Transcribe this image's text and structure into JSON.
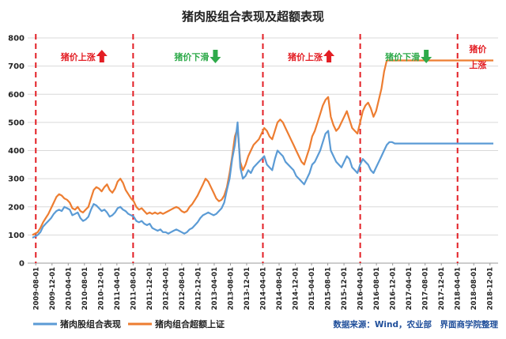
{
  "chart_data": {
    "type": "line",
    "title": "猪肉股组合表现及超额表现",
    "ylim": [
      0,
      800
    ],
    "yticks": [
      0,
      100,
      200,
      300,
      400,
      500,
      600,
      700,
      800
    ],
    "grid": "horizontal",
    "legend_position": "bottom-left",
    "x_ticks": [
      "2009-08-01",
      "2009-12-01",
      "2010-04-01",
      "2010-08-01",
      "2010-12-01",
      "2011-04-01",
      "2011-08-01",
      "2011-12-01",
      "2012-04-01",
      "2012-08-01",
      "2012-12-01",
      "2013-04-01",
      "2013-08-01",
      "2013-12-01",
      "2014-04-01",
      "2014-08-01",
      "2014-12-01",
      "2015-04-01",
      "2015-08-01",
      "2015-12-01",
      "2016-04-01",
      "2016-08-01",
      "2016-12-01",
      "2017-04-01",
      "2017-08-01",
      "2017-12-01",
      "2018-04-01",
      "2018-08-01",
      "2018-12-01"
    ],
    "series": [
      {
        "name": "猪肉股组合表现",
        "color": "#5b9bd5",
        "x": [
          0,
          1,
          2,
          3,
          4,
          5,
          6,
          7,
          8,
          9,
          10,
          11,
          12,
          13,
          14,
          15,
          16,
          17,
          18,
          19,
          20,
          21,
          22,
          23,
          24,
          25,
          26,
          27,
          28,
          29,
          30,
          31,
          32,
          33,
          34,
          35,
          36,
          37,
          38,
          39,
          40,
          41,
          42,
          43,
          44,
          45,
          46,
          47,
          48,
          49,
          50,
          51,
          52,
          53,
          54,
          55,
          56,
          57,
          58,
          59,
          60,
          61,
          62,
          63,
          64,
          65,
          66,
          67,
          68,
          69,
          70,
          71,
          72,
          73,
          74,
          75,
          76,
          77,
          78,
          79,
          80,
          81,
          82,
          83,
          84,
          85,
          86,
          87,
          88,
          89,
          90,
          91,
          92,
          93,
          94,
          95,
          96,
          97,
          98,
          99,
          100,
          101,
          102,
          103,
          104,
          105,
          106,
          107,
          108,
          109,
          110,
          111,
          112,
          113,
          114,
          115,
          116,
          117,
          118,
          119,
          120,
          121,
          122,
          123,
          124,
          125,
          126,
          127,
          128,
          129,
          130,
          131,
          132,
          133,
          134,
          135,
          136,
          137,
          138,
          139,
          140,
          141,
          142,
          143,
          144,
          145,
          146,
          147,
          148,
          149,
          150,
          151,
          152,
          153,
          154,
          155,
          156,
          157,
          158,
          159,
          160,
          161,
          162,
          163,
          164,
          165,
          166,
          167,
          168,
          169,
          170,
          171,
          172,
          173
        ],
        "values": [
          90,
          95,
          100,
          110,
          130,
          140,
          150,
          160,
          175,
          185,
          190,
          185,
          200,
          195,
          190,
          170,
          175,
          180,
          160,
          150,
          155,
          165,
          190,
          210,
          205,
          195,
          185,
          190,
          180,
          165,
          170,
          180,
          195,
          200,
          190,
          185,
          175,
          170,
          165,
          150,
          145,
          150,
          140,
          135,
          140,
          125,
          120,
          115,
          120,
          110,
          110,
          105,
          110,
          115,
          120,
          115,
          110,
          105,
          110,
          120,
          125,
          135,
          145,
          160,
          170,
          175,
          180,
          175,
          170,
          175,
          185,
          195,
          215,
          260,
          300,
          370,
          420,
          500,
          340,
          300,
          310,
          330,
          320,
          340,
          350,
          360,
          370,
          380,
          350,
          340,
          330,
          370,
          400,
          390,
          380,
          360,
          350,
          340,
          330,
          310,
          300,
          290,
          280,
          300,
          320,
          350,
          360,
          380,
          400,
          430,
          460,
          470,
          400,
          380,
          360,
          350,
          340,
          360,
          380,
          370,
          340,
          330,
          320,
          350,
          370,
          360,
          350,
          330,
          320,
          340,
          360,
          380,
          400,
          420,
          430,
          430,
          425,
          425,
          425,
          425,
          425,
          425,
          425,
          425,
          425,
          425,
          425,
          425,
          425,
          425,
          425,
          425,
          425,
          425,
          425,
          425,
          425,
          425,
          425,
          425,
          425,
          425,
          425,
          425,
          425,
          425,
          425,
          425,
          425,
          425,
          425,
          425,
          425,
          425
        ]
      },
      {
        "name": "猪肉组合超额上证",
        "color": "#ed7d31",
        "x": [
          0,
          1,
          2,
          3,
          4,
          5,
          6,
          7,
          8,
          9,
          10,
          11,
          12,
          13,
          14,
          15,
          16,
          17,
          18,
          19,
          20,
          21,
          22,
          23,
          24,
          25,
          26,
          27,
          28,
          29,
          30,
          31,
          32,
          33,
          34,
          35,
          36,
          37,
          38,
          39,
          40,
          41,
          42,
          43,
          44,
          45,
          46,
          47,
          48,
          49,
          50,
          51,
          52,
          53,
          54,
          55,
          56,
          57,
          58,
          59,
          60,
          61,
          62,
          63,
          64,
          65,
          66,
          67,
          68,
          69,
          70,
          71,
          72,
          73,
          74,
          75,
          76,
          77,
          78,
          79,
          80,
          81,
          82,
          83,
          84,
          85,
          86,
          87,
          88,
          89,
          90,
          91,
          92,
          93,
          94,
          95,
          96,
          97,
          98,
          99,
          100,
          101,
          102,
          103,
          104,
          105,
          106,
          107,
          108,
          109,
          110,
          111,
          112,
          113,
          114,
          115,
          116,
          117,
          118,
          119,
          120,
          121,
          122,
          123,
          124,
          125,
          126,
          127,
          128,
          129,
          130,
          131,
          132,
          133,
          134,
          135,
          136,
          137,
          138,
          139,
          140,
          141,
          142,
          143,
          144,
          145,
          146,
          147,
          148,
          149,
          150,
          151,
          152,
          153,
          154,
          155,
          156,
          157,
          158,
          159,
          160,
          161,
          162,
          163,
          164,
          165,
          166,
          167,
          168,
          169,
          170,
          171,
          172,
          173
        ],
        "values": [
          100,
          105,
          110,
          125,
          145,
          160,
          175,
          195,
          215,
          235,
          245,
          240,
          230,
          225,
          215,
          195,
          190,
          200,
          185,
          180,
          190,
          200,
          230,
          260,
          270,
          265,
          255,
          270,
          280,
          260,
          250,
          265,
          290,
          300,
          285,
          260,
          245,
          230,
          220,
          200,
          190,
          195,
          185,
          175,
          180,
          175,
          180,
          175,
          180,
          175,
          180,
          185,
          190,
          195,
          200,
          195,
          185,
          180,
          185,
          200,
          210,
          225,
          240,
          260,
          280,
          300,
          290,
          270,
          250,
          230,
          220,
          225,
          240,
          270,
          320,
          380,
          450,
          480,
          360,
          330,
          350,
          380,
          400,
          420,
          430,
          440,
          460,
          480,
          470,
          450,
          440,
          470,
          500,
          510,
          500,
          480,
          460,
          440,
          420,
          400,
          380,
          360,
          350,
          380,
          410,
          450,
          470,
          500,
          530,
          560,
          580,
          590,
          520,
          490,
          470,
          480,
          500,
          520,
          540,
          510,
          480,
          470,
          460,
          500,
          540,
          560,
          570,
          550,
          520,
          540,
          580,
          620,
          680,
          720,
          720,
          720,
          720,
          720,
          720,
          720,
          720,
          720,
          720,
          720,
          720,
          720,
          720,
          720,
          720,
          720,
          720,
          720,
          720,
          720,
          720,
          720,
          720,
          720,
          720,
          720,
          720,
          720,
          720,
          720,
          720,
          720,
          720,
          720,
          720,
          720,
          720,
          720,
          720,
          720
        ]
      }
    ],
    "annotations": [
      {
        "text": "猪价上涨",
        "arrow": "up",
        "color": "#e31e24"
      },
      {
        "text": "猪价下滑",
        "arrow": "down",
        "color": "#2eaa4a"
      },
      {
        "text": "猪价上涨",
        "arrow": "up",
        "color": "#e31e24"
      },
      {
        "text": "猪价下滑",
        "arrow": "down",
        "color": "#2eaa4a"
      },
      {
        "text": "猪价",
        "text2": "上涨",
        "arrow": "none",
        "color": "#e31e24"
      }
    ],
    "phase_boundaries_x": [
      "2009-08-01",
      "2011-08-01",
      "2014-04-01",
      "2016-04-01",
      "2018-04-01"
    ]
  },
  "source_note": "数据来源：Wind，农业部　界面商学院整理",
  "colors": {
    "divider": "#e31e24",
    "grid": "#d9d9d9",
    "axis": "#999999"
  }
}
